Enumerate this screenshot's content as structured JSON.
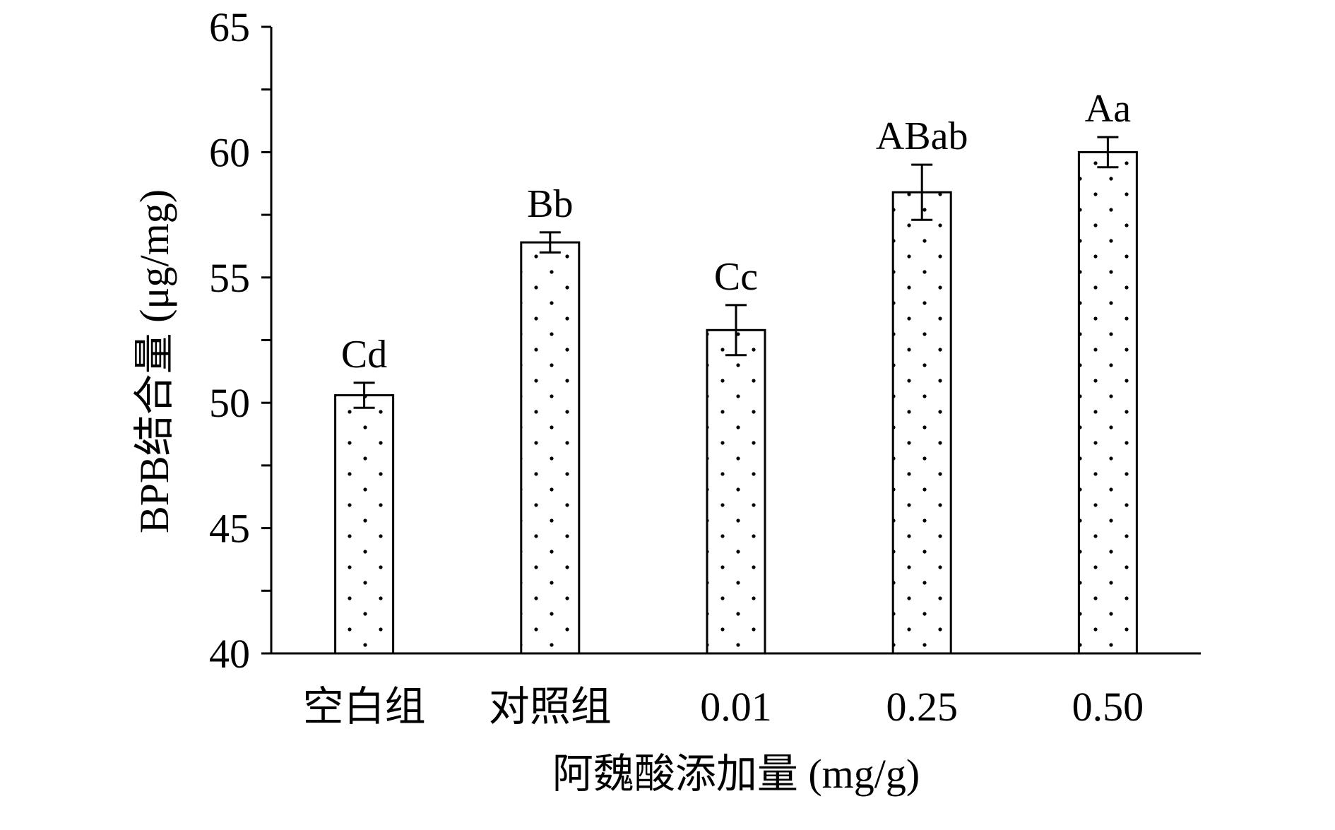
{
  "chart_data": {
    "type": "bar",
    "title": "",
    "xlabel": "阿魏酸添加量 (mg/g)",
    "ylabel": "BPB结合量 (μg/mg)",
    "ylim": [
      40,
      65
    ],
    "yticks": [
      "40",
      "45",
      "50",
      "55",
      "60",
      "65"
    ],
    "categories": [
      "空白组",
      "对照组",
      "0.01",
      "0.25",
      "0.50"
    ],
    "values": [
      50.3,
      56.4,
      52.9,
      58.4,
      60.0
    ],
    "errors": [
      0.5,
      0.4,
      1.0,
      1.1,
      0.6
    ],
    "significance_labels": [
      "Cd",
      "Bb",
      "Cc",
      "ABab",
      "Aa"
    ],
    "bar_style": "dotted pattern, black outline",
    "grid": false,
    "legend": "none"
  }
}
